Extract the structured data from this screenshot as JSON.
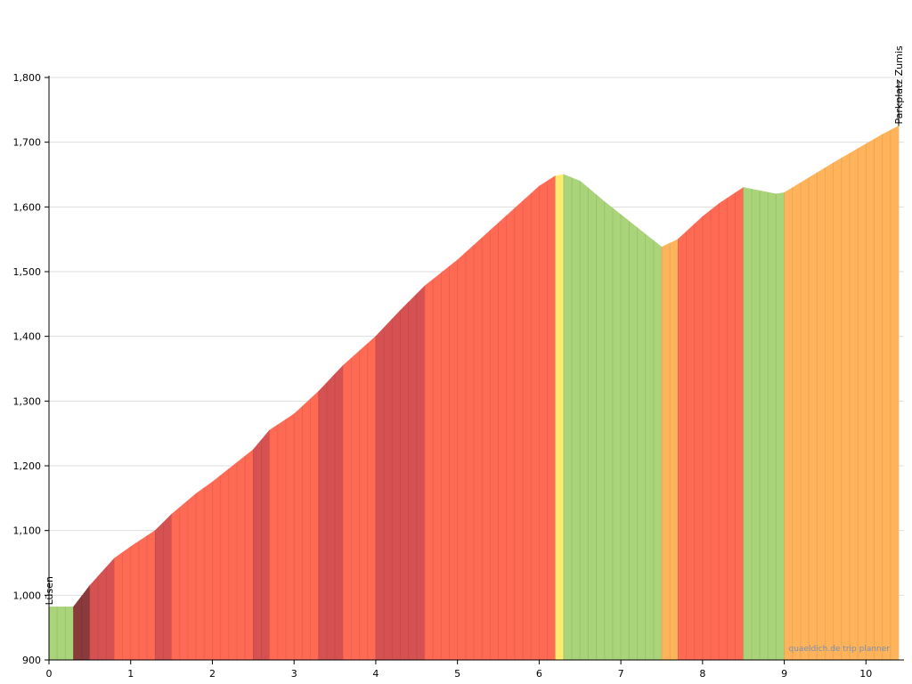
{
  "chart_data": {
    "type": "area",
    "xlim": [
      0,
      10.4
    ],
    "ylim": [
      900,
      1800
    ],
    "x_ticks": [
      "0",
      "1",
      "2",
      "3",
      "4",
      "5",
      "6",
      "7",
      "8",
      "9",
      "10"
    ],
    "y_ticks": [
      "900",
      "1,000",
      "1,100",
      "1,200",
      "1,300",
      "1,400",
      "1,500",
      "1,600",
      "1,700",
      "1,800"
    ],
    "grid": "horizontal",
    "profile": {
      "x": [
        0,
        0.3,
        0.5,
        0.8,
        1.0,
        1.3,
        1.5,
        1.8,
        2.0,
        2.3,
        2.5,
        2.7,
        3.0,
        3.3,
        3.6,
        4.0,
        4.3,
        4.6,
        5.0,
        5.5,
        6.0,
        6.2,
        6.3,
        6.5,
        6.8,
        7.0,
        7.2,
        7.5,
        7.7,
        8.0,
        8.2,
        8.5,
        8.7,
        8.9,
        9.0,
        9.3,
        9.6,
        9.9,
        10.2,
        10.4
      ],
      "y": [
        982,
        982,
        1015,
        1057,
        1075,
        1100,
        1125,
        1157,
        1175,
        1205,
        1225,
        1255,
        1280,
        1315,
        1355,
        1400,
        1440,
        1478,
        1518,
        1575,
        1632,
        1648,
        1650,
        1640,
        1608,
        1588,
        1568,
        1538,
        1550,
        1585,
        1605,
        1630,
        1625,
        1620,
        1622,
        1645,
        1668,
        1690,
        1712,
        1725
      ]
    },
    "gradient_colors": {
      "flat": "#a9d47a",
      "gentle": "#ffec6e",
      "moderate": "#ffb45c",
      "steep": "#ff6a55",
      "very_steep": "#d65252",
      "extreme": "#8a3a3a"
    },
    "annotations": [
      {
        "x": 0,
        "label": "Lüsen"
      },
      {
        "x": 10.4,
        "label": "Parkplatz Zumis"
      }
    ],
    "watermark": "quaeldich.de trip planner"
  }
}
